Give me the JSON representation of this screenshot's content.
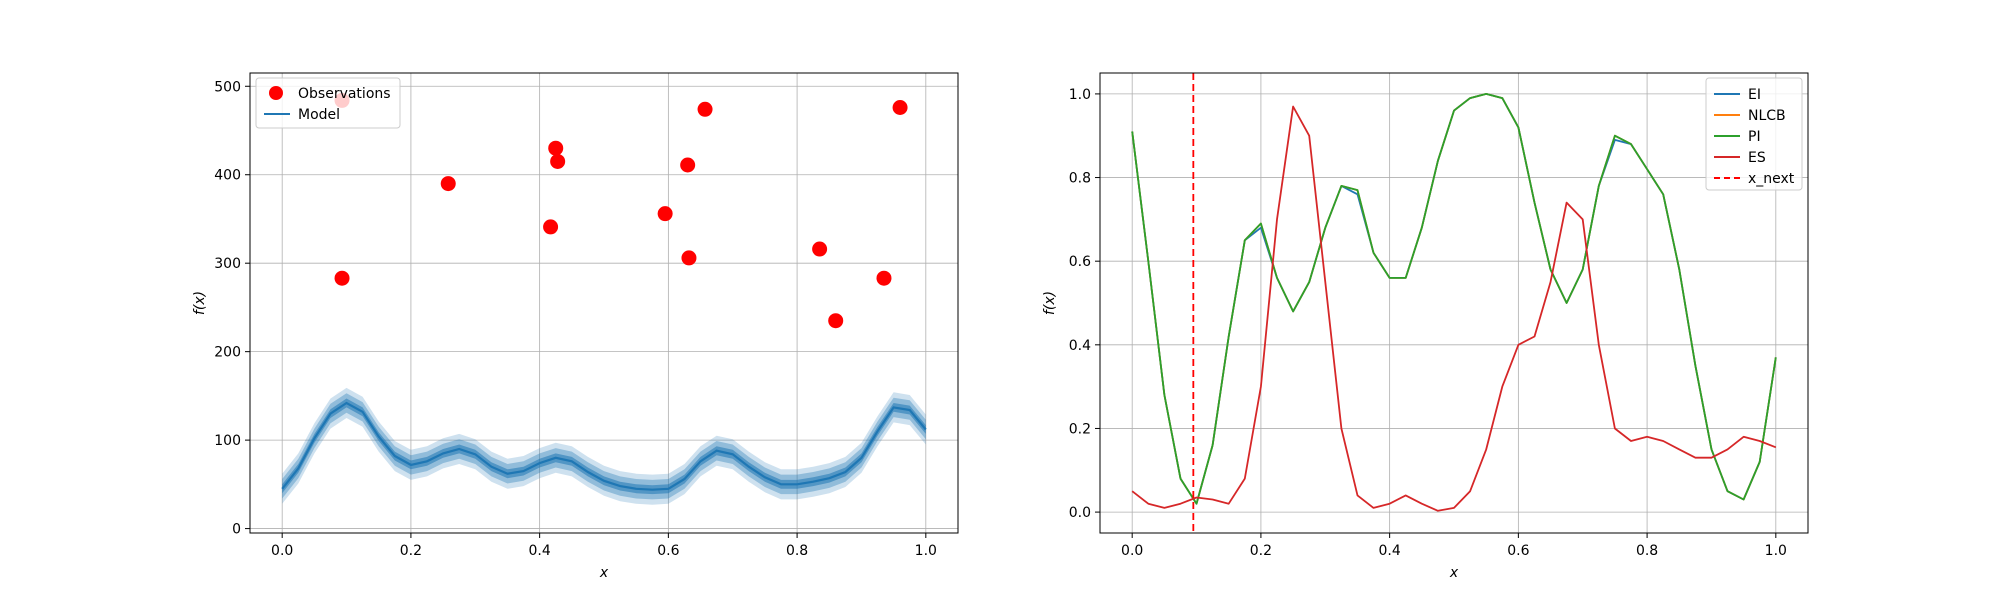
{
  "chart_data": [
    {
      "type": "scatter",
      "xlabel": "x",
      "ylabel": "f(x)",
      "xlim": [
        -0.05,
        1.05
      ],
      "ylim": [
        -5,
        515
      ],
      "xticks": [
        0.0,
        0.2,
        0.4,
        0.6,
        0.8,
        1.0
      ],
      "xtick_labels": [
        "0.0",
        "0.2",
        "0.4",
        "0.6",
        "0.8",
        "1.0"
      ],
      "yticks": [
        0,
        100,
        200,
        300,
        400,
        500
      ],
      "ytick_labels": [
        "0",
        "100",
        "200",
        "300",
        "400",
        "500"
      ],
      "grid": true,
      "legend_position": "upper-left",
      "legend": [
        {
          "label": "Observations",
          "marker": "circle",
          "color": "#ff0000"
        },
        {
          "label": "Model",
          "marker": "line",
          "color": "#1f77b4"
        }
      ],
      "observations": {
        "name": "Observations",
        "color": "#ff0000",
        "points": [
          {
            "x": 0.093,
            "y": 283
          },
          {
            "x": 0.093,
            "y": 484
          },
          {
            "x": 0.258,
            "y": 390
          },
          {
            "x": 0.417,
            "y": 341
          },
          {
            "x": 0.425,
            "y": 430
          },
          {
            "x": 0.428,
            "y": 415
          },
          {
            "x": 0.595,
            "y": 356
          },
          {
            "x": 0.63,
            "y": 411
          },
          {
            "x": 0.632,
            "y": 306
          },
          {
            "x": 0.657,
            "y": 474
          },
          {
            "x": 0.835,
            "y": 316
          },
          {
            "x": 0.86,
            "y": 235
          },
          {
            "x": 0.935,
            "y": 283
          },
          {
            "x": 0.96,
            "y": 476
          }
        ]
      },
      "model": {
        "name": "Model",
        "color": "#1f77b4",
        "x": [
          0.0,
          0.025,
          0.05,
          0.075,
          0.1,
          0.125,
          0.15,
          0.175,
          0.2,
          0.225,
          0.25,
          0.275,
          0.3,
          0.325,
          0.35,
          0.375,
          0.4,
          0.425,
          0.45,
          0.475,
          0.5,
          0.525,
          0.55,
          0.575,
          0.6,
          0.625,
          0.65,
          0.675,
          0.7,
          0.725,
          0.75,
          0.775,
          0.8,
          0.825,
          0.85,
          0.875,
          0.9,
          0.925,
          0.95,
          0.975,
          1.0
        ],
        "mean": [
          45,
          68,
          102,
          130,
          142,
          132,
          104,
          82,
          72,
          76,
          85,
          90,
          84,
          70,
          62,
          65,
          74,
          80,
          76,
          64,
          54,
          48,
          45,
          44,
          45,
          56,
          76,
          88,
          84,
          70,
          58,
          50,
          50,
          53,
          57,
          64,
          80,
          110,
          137,
          134,
          112
        ],
        "bands_std": [
          5,
          11,
          17
        ]
      }
    },
    {
      "type": "line",
      "xlabel": "x",
      "ylabel": "f(x)",
      "xlim": [
        -0.05,
        1.05
      ],
      "ylim": [
        -0.05,
        1.05
      ],
      "xticks": [
        0.0,
        0.2,
        0.4,
        0.6,
        0.8,
        1.0
      ],
      "xtick_labels": [
        "0.0",
        "0.2",
        "0.4",
        "0.6",
        "0.8",
        "1.0"
      ],
      "yticks": [
        0.0,
        0.2,
        0.4,
        0.6,
        0.8,
        1.0
      ],
      "ytick_labels": [
        "0.0",
        "0.2",
        "0.4",
        "0.6",
        "0.8",
        "1.0"
      ],
      "grid": true,
      "legend_position": "upper-right",
      "x": [
        0.0,
        0.025,
        0.05,
        0.075,
        0.1,
        0.125,
        0.15,
        0.175,
        0.2,
        0.225,
        0.25,
        0.275,
        0.3,
        0.325,
        0.35,
        0.375,
        0.4,
        0.425,
        0.45,
        0.475,
        0.5,
        0.525,
        0.55,
        0.575,
        0.6,
        0.625,
        0.65,
        0.675,
        0.7,
        0.725,
        0.75,
        0.775,
        0.8,
        0.825,
        0.85,
        0.875,
        0.9,
        0.925,
        0.95,
        0.975,
        1.0
      ],
      "series": [
        {
          "name": "EI",
          "color": "#1f77b4",
          "dash": "solid",
          "values": [
            0.91,
            0.6,
            0.28,
            0.08,
            0.02,
            0.16,
            0.42,
            0.65,
            0.68,
            0.56,
            0.48,
            0.55,
            0.68,
            0.78,
            0.76,
            0.62,
            0.56,
            0.56,
            0.68,
            0.84,
            0.96,
            0.99,
            1.0,
            0.99,
            0.92,
            0.74,
            0.58,
            0.5,
            0.58,
            0.78,
            0.89,
            0.88,
            0.82,
            0.76,
            0.58,
            0.35,
            0.15,
            0.05,
            0.03,
            0.12,
            0.37
          ]
        },
        {
          "name": "NLCB",
          "color": "#ff7f0e",
          "dash": "solid",
          "values": [
            0.91,
            0.6,
            0.28,
            0.08,
            0.02,
            0.16,
            0.42,
            0.65,
            0.69,
            0.56,
            0.48,
            0.55,
            0.68,
            0.78,
            0.77,
            0.62,
            0.56,
            0.56,
            0.68,
            0.84,
            0.96,
            0.99,
            1.0,
            0.99,
            0.92,
            0.74,
            0.58,
            0.5,
            0.58,
            0.78,
            0.9,
            0.88,
            0.82,
            0.76,
            0.58,
            0.35,
            0.15,
            0.05,
            0.03,
            0.12,
            0.37
          ]
        },
        {
          "name": "PI",
          "color": "#2ca02c",
          "dash": "solid",
          "values": [
            0.91,
            0.6,
            0.28,
            0.08,
            0.02,
            0.16,
            0.42,
            0.65,
            0.69,
            0.56,
            0.48,
            0.55,
            0.68,
            0.78,
            0.77,
            0.62,
            0.56,
            0.56,
            0.68,
            0.84,
            0.96,
            0.99,
            1.0,
            0.99,
            0.92,
            0.74,
            0.58,
            0.5,
            0.58,
            0.78,
            0.9,
            0.88,
            0.82,
            0.76,
            0.58,
            0.35,
            0.15,
            0.05,
            0.03,
            0.12,
            0.37
          ]
        },
        {
          "name": "ES",
          "color": "#d62728",
          "dash": "solid",
          "values": [
            0.05,
            0.02,
            0.01,
            0.02,
            0.035,
            0.03,
            0.02,
            0.08,
            0.3,
            0.7,
            0.97,
            0.9,
            0.55,
            0.2,
            0.04,
            0.01,
            0.02,
            0.04,
            0.02,
            0.003,
            0.01,
            0.05,
            0.15,
            0.3,
            0.4,
            0.42,
            0.55,
            0.74,
            0.7,
            0.4,
            0.2,
            0.17,
            0.18,
            0.17,
            0.15,
            0.13,
            0.13,
            0.15,
            0.18,
            0.17,
            0.155
          ]
        }
      ],
      "vline": {
        "name": "x_next",
        "x": 0.095,
        "color": "#ff0000",
        "dash": "dashed"
      },
      "legend": [
        {
          "label": "EI",
          "color": "#1f77b4",
          "dash": "solid"
        },
        {
          "label": "NLCB",
          "color": "#ff7f0e",
          "dash": "solid"
        },
        {
          "label": "PI",
          "color": "#2ca02c",
          "dash": "solid"
        },
        {
          "label": "ES",
          "color": "#d62728",
          "dash": "solid"
        },
        {
          "label": "x_next",
          "color": "#ff0000",
          "dash": "dashed"
        }
      ]
    }
  ]
}
